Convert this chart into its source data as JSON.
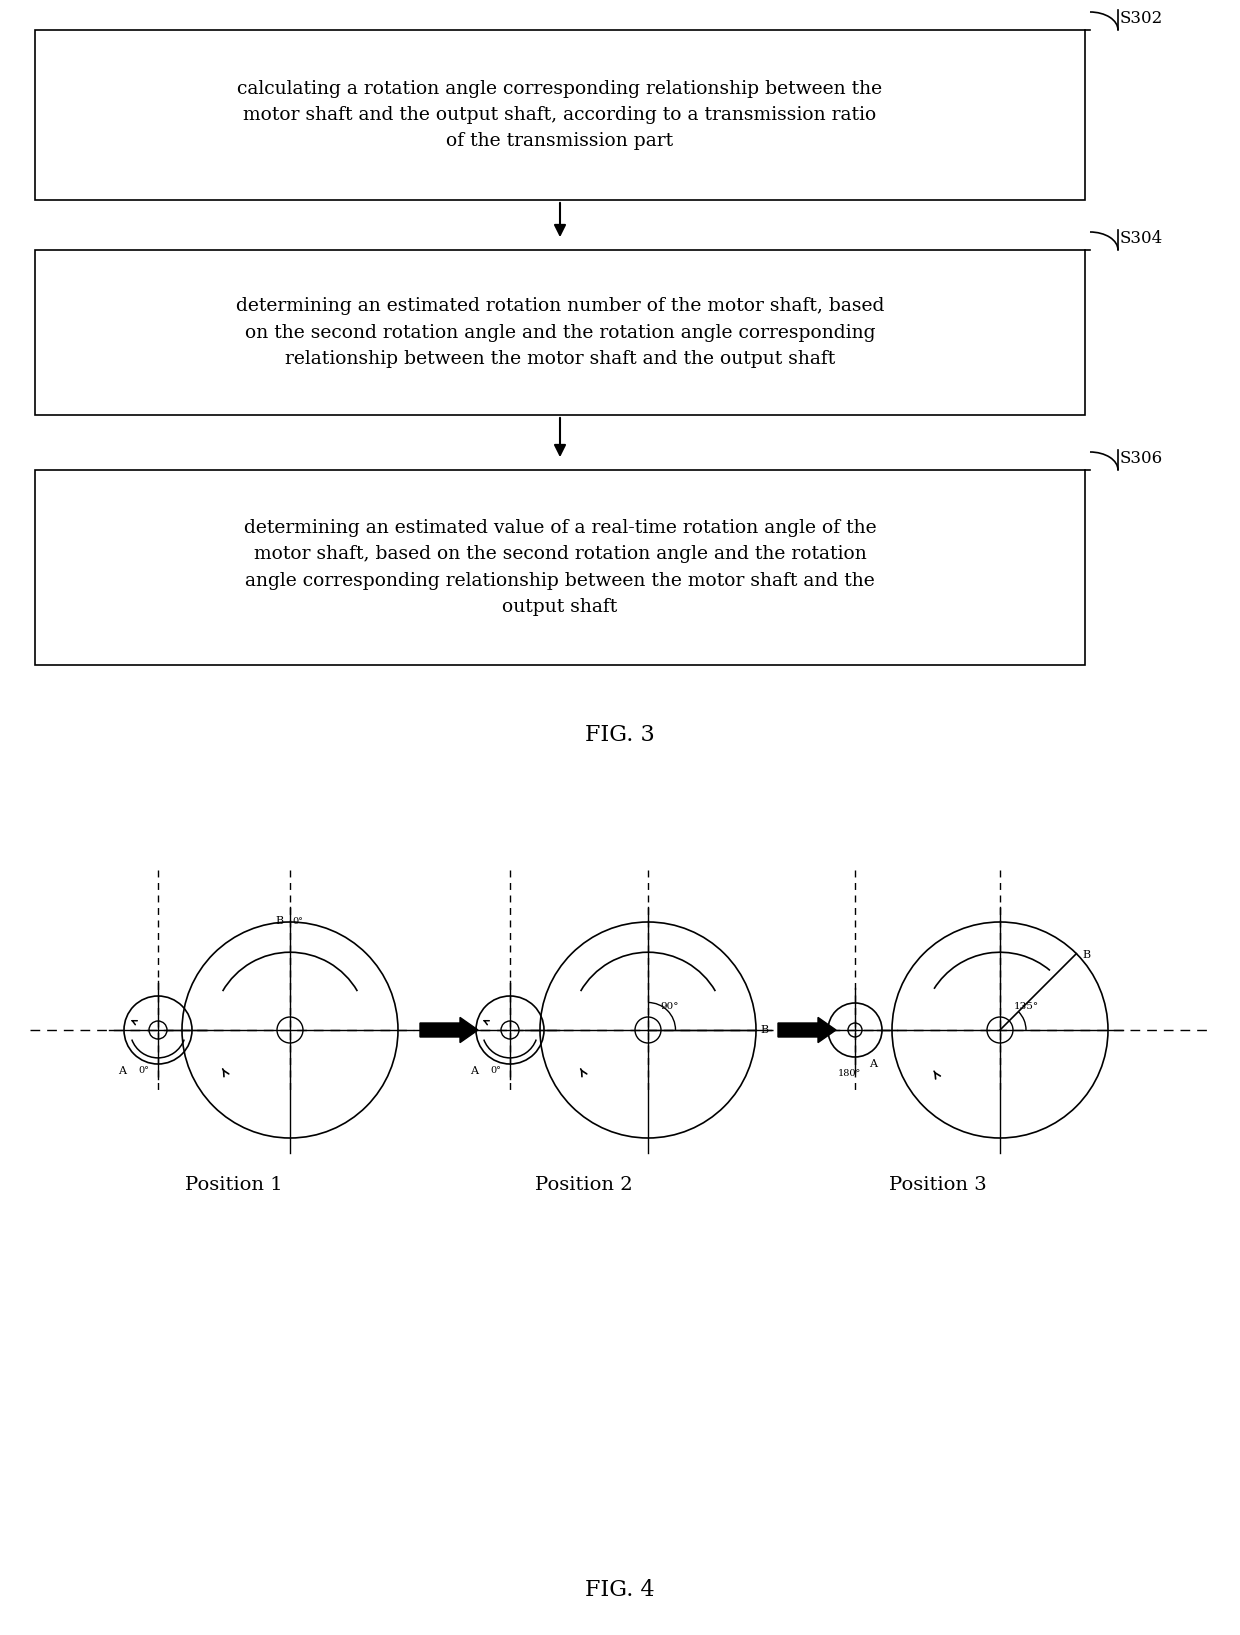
{
  "background_color": "#ffffff",
  "fig_width": 12.4,
  "fig_height": 16.35,
  "box1_text": "calculating a rotation angle corresponding relationship between the\nmotor shaft and the output shaft, according to a transmission ratio\nof the transmission part",
  "box2_text": "determining an estimated rotation number of the motor shaft, based\non the second rotation angle and the rotation angle corresponding\nrelationship between the motor shaft and the output shaft",
  "box3_text": "determining an estimated value of a real-time rotation angle of the\nmotor shaft, based on the second rotation angle and the rotation\nangle corresponding relationship between the motor shaft and the\noutput shaft",
  "label1": "S302",
  "label2": "S304",
  "label3": "S306",
  "fig3_caption": "FIG. 3",
  "fig4_caption": "FIG. 4",
  "pos1_label": "Position 1",
  "pos2_label": "Position 2",
  "pos3_label": "Position 3",
  "text_color": "#000000",
  "box_edge_color": "#000000"
}
